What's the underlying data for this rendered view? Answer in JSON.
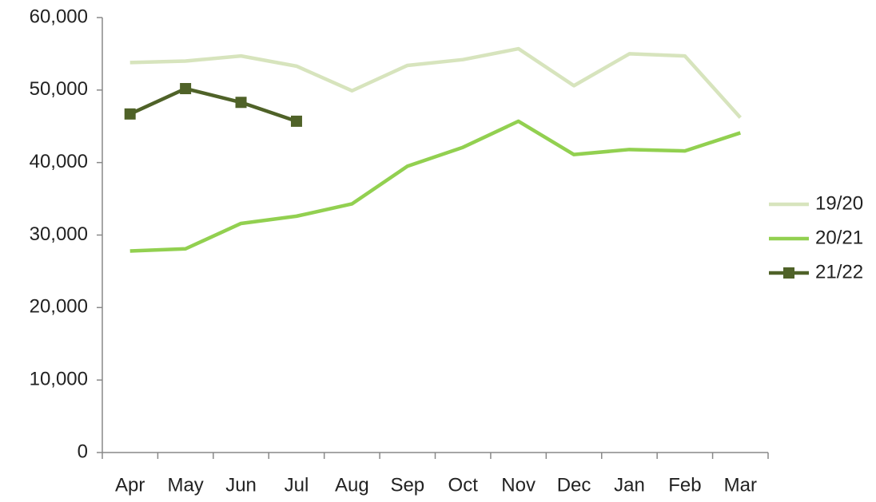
{
  "chart_data": {
    "type": "line",
    "categories": [
      "Apr",
      "May",
      "Jun",
      "Jul",
      "Aug",
      "Sep",
      "Oct",
      "Nov",
      "Dec",
      "Jan",
      "Feb",
      "Mar"
    ],
    "series": [
      {
        "name": "19/20",
        "color": "#d7e4bd",
        "values": [
          53800,
          54000,
          54700,
          53300,
          49900,
          53400,
          54200,
          55700,
          50600,
          55000,
          54700,
          46200
        ]
      },
      {
        "name": "20/21",
        "color": "#92d050",
        "values": [
          27800,
          28100,
          31600,
          32600,
          34300,
          39500,
          42100,
          45700,
          41100,
          41800,
          41600,
          44100
        ]
      },
      {
        "name": "21/22",
        "color": "#4f6228",
        "marker": "square",
        "values": [
          46700,
          50200,
          48300,
          45700,
          null,
          null,
          null,
          null,
          null,
          null,
          null,
          null
        ]
      }
    ],
    "ylim": [
      0,
      60000
    ],
    "yticks": [
      0,
      {
        "value": 10000,
        "label": "10,000"
      },
      {
        "value": 20000,
        "label": "20,000"
      },
      {
        "value": 30000,
        "label": "30,000"
      },
      {
        "value": 40000,
        "label": "40,000"
      },
      {
        "value": 50000,
        "label": "50,000"
      },
      {
        "value": 60000,
        "label": "60,000"
      }
    ],
    "grid": false,
    "legend": "right"
  }
}
